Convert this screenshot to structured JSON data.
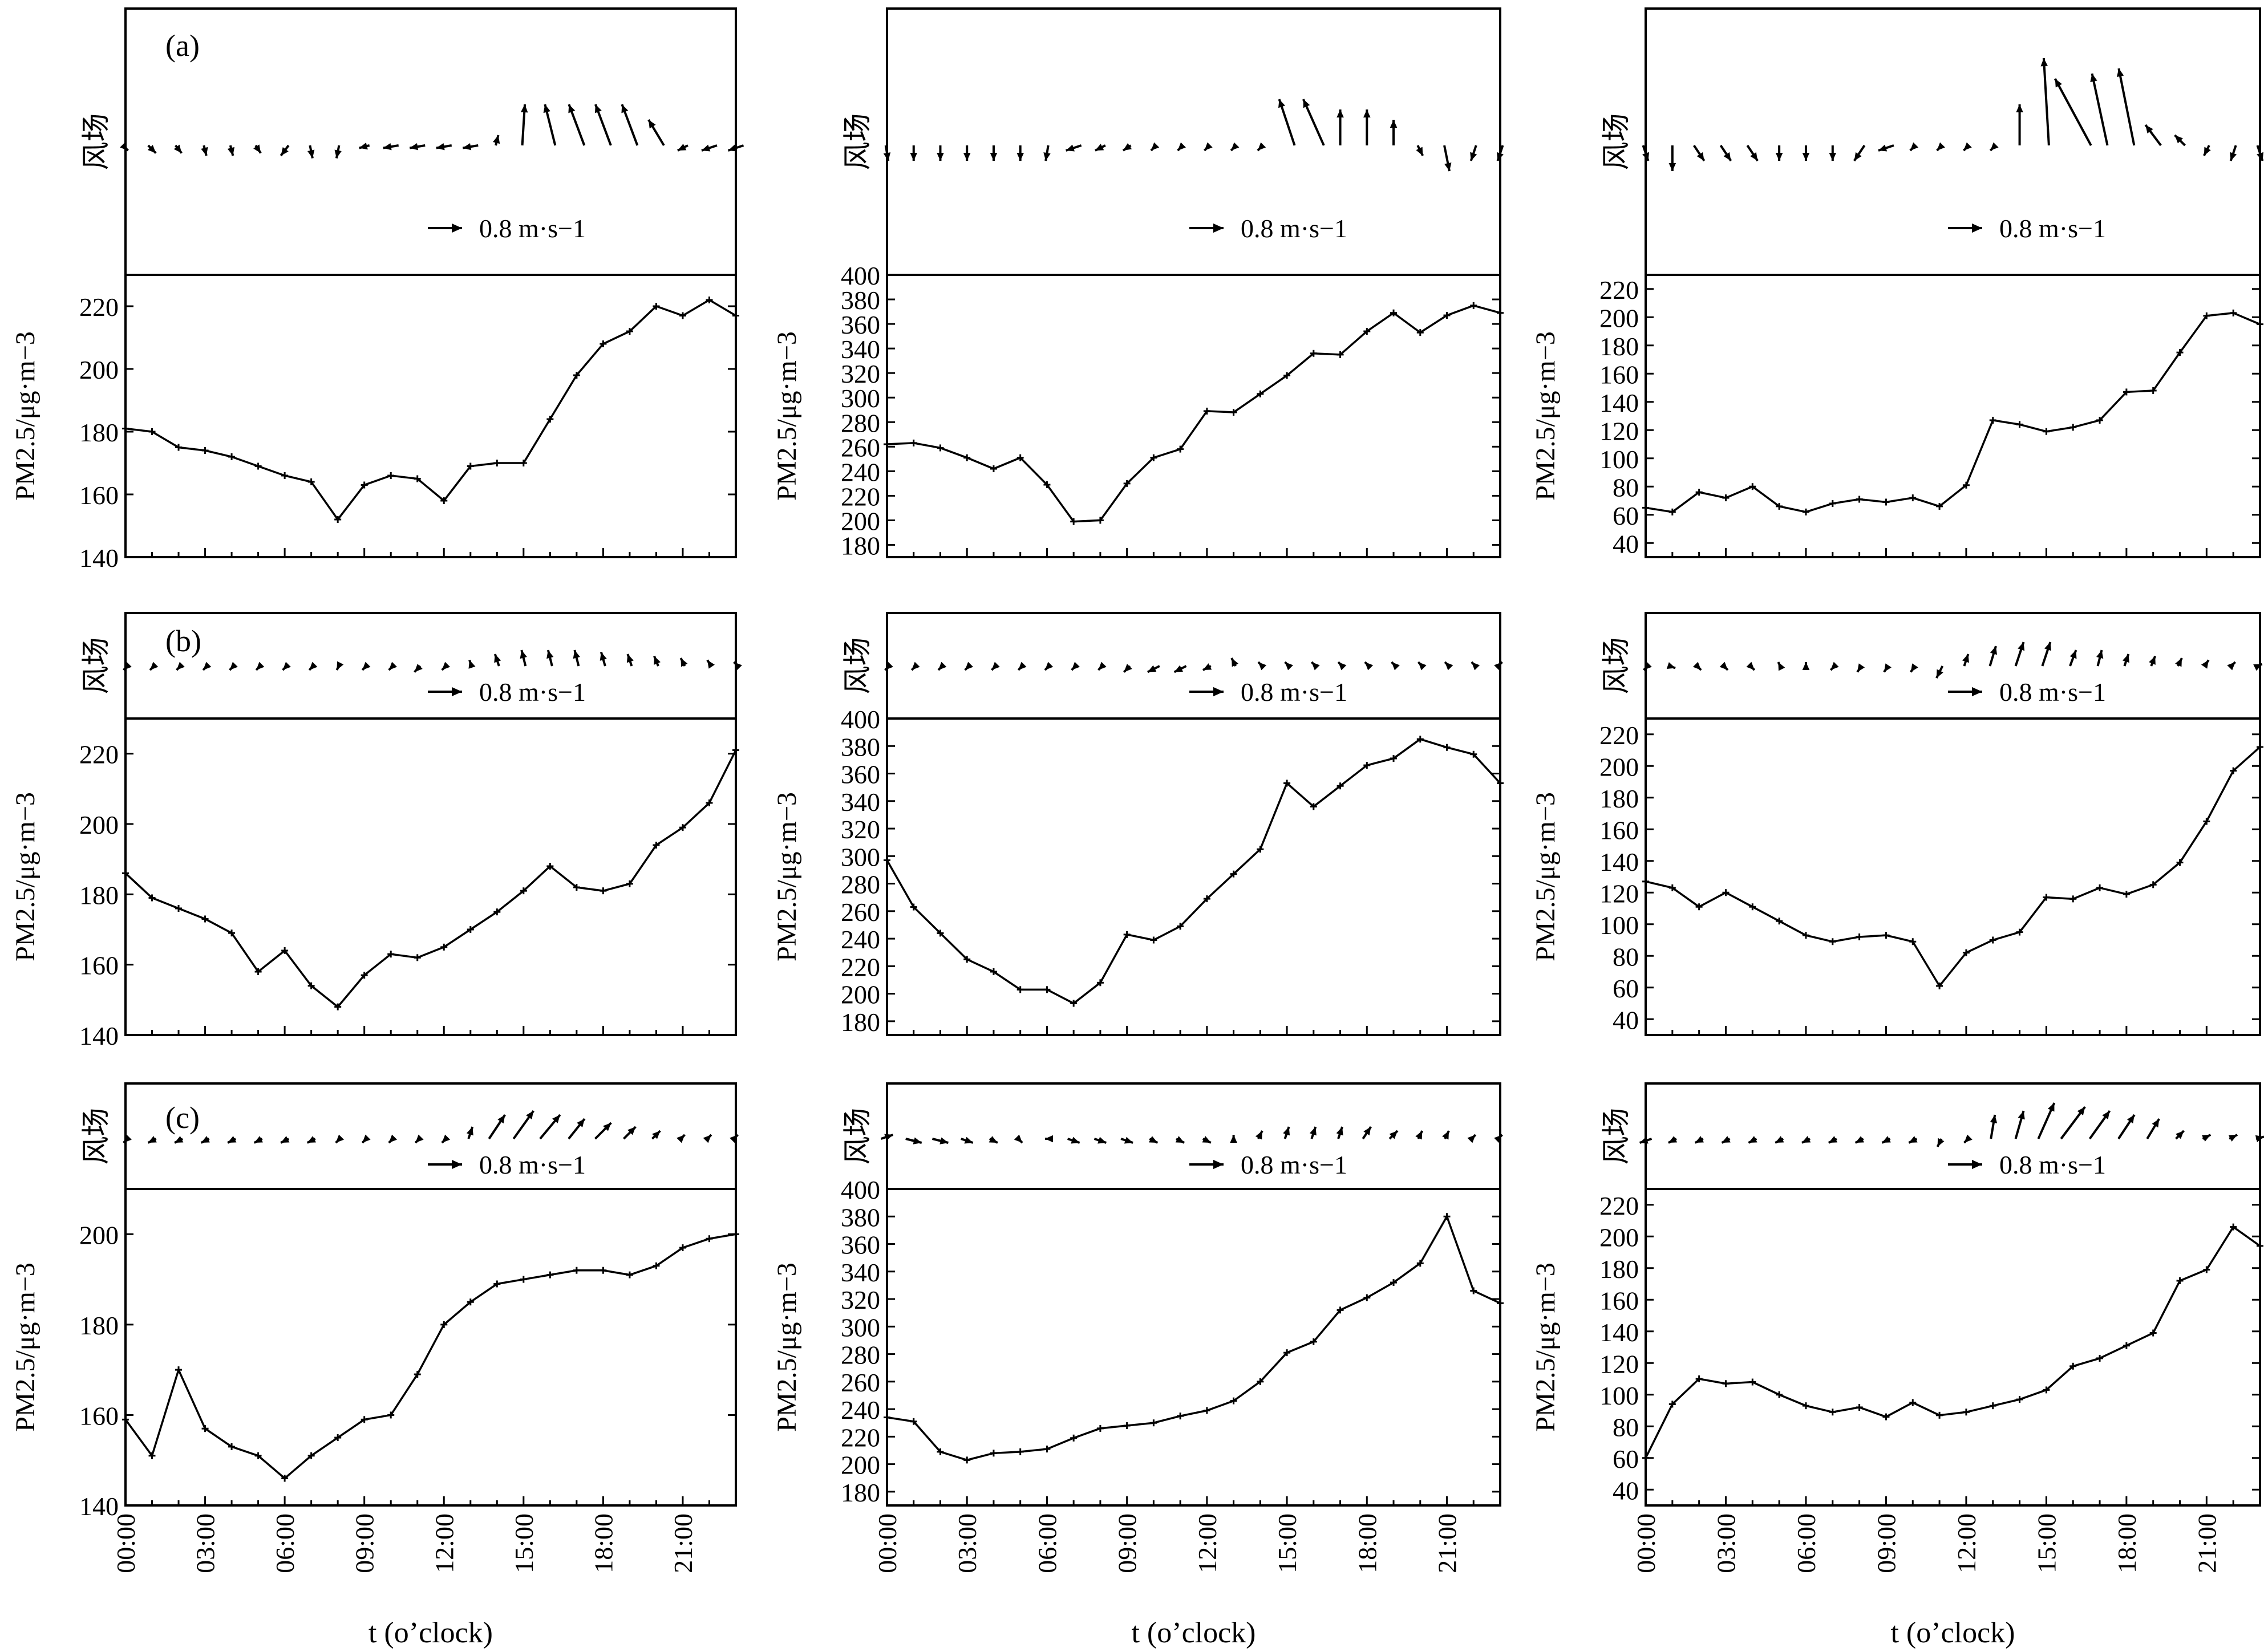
{
  "figure": {
    "wind_axis_label": "风场",
    "pm_axis_label": "PM2.5/μg·m−3",
    "x_axis_label": "t (o’clock)",
    "x_ticks": [
      "00:00",
      "03:00",
      "06:00",
      "09:00",
      "12:00",
      "15:00",
      "18:00",
      "21:00"
    ],
    "reference_arrow_label": "0.8 m·s−1",
    "reference_arrow_speed": 0.8,
    "row_labels": [
      "(a)",
      "(b)",
      "(c)"
    ]
  },
  "chart_data": [
    {
      "type": "line",
      "row": "(a)",
      "col": 1,
      "x_unit": "hour",
      "ylim": [
        140,
        230
      ],
      "yticks": [
        140,
        160,
        180,
        200,
        220
      ],
      "values": [
        181,
        180,
        175,
        174,
        172,
        169,
        166,
        164,
        152,
        163,
        166,
        165,
        158,
        169,
        170,
        170,
        184,
        198,
        208,
        212,
        220,
        217,
        222,
        217
      ]
    },
    {
      "type": "line",
      "row": "(a)",
      "col": 2,
      "x_unit": "hour",
      "ylim": [
        170,
        400
      ],
      "yticks": [
        180,
        200,
        220,
        240,
        260,
        280,
        300,
        320,
        340,
        360,
        380,
        400
      ],
      "values": [
        262,
        263,
        259,
        251,
        242,
        251,
        229,
        199,
        200,
        230,
        251,
        258,
        289,
        288,
        303,
        318,
        336,
        335,
        354,
        369,
        353,
        367,
        375,
        369
      ]
    },
    {
      "type": "line",
      "row": "(a)",
      "col": 3,
      "x_unit": "hour",
      "ylim": [
        30,
        230
      ],
      "yticks": [
        40,
        60,
        80,
        100,
        120,
        140,
        160,
        180,
        200,
        220
      ],
      "values": [
        65,
        62,
        76,
        72,
        80,
        66,
        62,
        68,
        71,
        69,
        72,
        66,
        81,
        127,
        124,
        119,
        122,
        127,
        147,
        148,
        175,
        201,
        203,
        195
      ]
    },
    {
      "type": "line",
      "row": "(b)",
      "col": 1,
      "x_unit": "hour",
      "ylim": [
        140,
        230
      ],
      "yticks": [
        140,
        160,
        180,
        200,
        220
      ],
      "values": [
        186,
        179,
        176,
        173,
        169,
        158,
        164,
        154,
        148,
        157,
        163,
        162,
        165,
        170,
        175,
        181,
        188,
        182,
        181,
        183,
        194,
        199,
        206,
        221
      ]
    },
    {
      "type": "line",
      "row": "(b)",
      "col": 2,
      "x_unit": "hour",
      "ylim": [
        170,
        400
      ],
      "yticks": [
        180,
        200,
        220,
        240,
        260,
        280,
        300,
        320,
        340,
        360,
        380,
        400
      ],
      "values": [
        297,
        263,
        244,
        225,
        216,
        203,
        203,
        193,
        208,
        243,
        239,
        249,
        269,
        287,
        305,
        353,
        336,
        351,
        366,
        371,
        385,
        379,
        374,
        353
      ]
    },
    {
      "type": "line",
      "row": "(b)",
      "col": 3,
      "x_unit": "hour",
      "ylim": [
        30,
        230
      ],
      "yticks": [
        40,
        60,
        80,
        100,
        120,
        140,
        160,
        180,
        200,
        220
      ],
      "values": [
        127,
        123,
        111,
        120,
        111,
        102,
        93,
        89,
        92,
        93,
        89,
        61,
        82,
        90,
        95,
        117,
        116,
        123,
        119,
        125,
        139,
        165,
        197,
        212
      ]
    },
    {
      "type": "line",
      "row": "(c)",
      "col": 1,
      "x_unit": "hour",
      "ylim": [
        140,
        210
      ],
      "yticks": [
        140,
        160,
        180,
        200
      ],
      "values": [
        159,
        151,
        170,
        157,
        153,
        151,
        146,
        151,
        155,
        159,
        160,
        169,
        180,
        185,
        189,
        190,
        191,
        192,
        192,
        191,
        193,
        197,
        199,
        200
      ]
    },
    {
      "type": "line",
      "row": "(c)",
      "col": 2,
      "x_unit": "hour",
      "ylim": [
        170,
        400
      ],
      "yticks": [
        180,
        200,
        220,
        240,
        260,
        280,
        300,
        320,
        340,
        360,
        380,
        400
      ],
      "values": [
        234,
        231,
        209,
        203,
        208,
        209,
        211,
        219,
        226,
        228,
        230,
        235,
        239,
        246,
        260,
        281,
        289,
        312,
        321,
        332,
        346,
        380,
        326,
        317
      ]
    },
    {
      "type": "line",
      "row": "(c)",
      "col": 3,
      "x_unit": "hour",
      "ylim": [
        30,
        230
      ],
      "yticks": [
        40,
        60,
        80,
        100,
        120,
        140,
        160,
        180,
        200,
        220
      ],
      "values": [
        60,
        94,
        110,
        107,
        108,
        100,
        93,
        89,
        92,
        86,
        95,
        87,
        89,
        93,
        97,
        103,
        118,
        123,
        131,
        139,
        172,
        179,
        206,
        194
      ]
    }
  ],
  "wind_data": [
    {
      "row": "(a)",
      "col": 1,
      "u": [
        0.1,
        0.15,
        0.12,
        0.05,
        0.05,
        0.1,
        -0.15,
        0.05,
        -0.05,
        -0.2,
        -0.3,
        -0.3,
        -0.3,
        -0.3,
        0.05,
        0.05,
        -0.2,
        -0.3,
        -0.3,
        -0.3,
        -0.3,
        -0.2,
        -0.3,
        -0.3
      ],
      "v": [
        -0.1,
        -0.15,
        -0.15,
        -0.2,
        -0.2,
        -0.15,
        -0.2,
        -0.25,
        -0.25,
        -0.05,
        -0.05,
        -0.05,
        -0.05,
        -0.05,
        0.2,
        0.8,
        0.8,
        0.8,
        0.8,
        0.8,
        0.5,
        -0.1,
        -0.1,
        -0.1
      ]
    },
    {
      "row": "(a)",
      "col": 2,
      "u": [
        0.05,
        0.0,
        0.0,
        0.0,
        0.0,
        0.0,
        -0.05,
        -0.3,
        -0.2,
        -0.15,
        -0.1,
        -0.1,
        -0.1,
        -0.1,
        -0.1,
        -0.3,
        -0.4,
        0.0,
        0.0,
        0.0,
        0.1,
        0.1,
        -0.1,
        -0.1
      ],
      "v": [
        -0.3,
        -0.3,
        -0.3,
        -0.3,
        -0.3,
        -0.3,
        -0.3,
        -0.1,
        -0.1,
        -0.1,
        -0.1,
        -0.1,
        -0.1,
        -0.1,
        -0.1,
        0.9,
        0.9,
        0.7,
        0.7,
        0.5,
        -0.2,
        -0.5,
        -0.3,
        -0.3
      ]
    },
    {
      "row": "(a)",
      "col": 3,
      "u": [
        0.1,
        0.0,
        0.2,
        0.2,
        0.2,
        0.0,
        0.0,
        0.0,
        -0.2,
        -0.3,
        -0.1,
        -0.1,
        -0.1,
        -0.1,
        0.0,
        -0.1,
        -0.7,
        -0.3,
        -0.3,
        -0.3,
        -0.2,
        -0.1,
        -0.1,
        0.1
      ],
      "v": [
        -0.3,
        -0.5,
        -0.3,
        -0.3,
        -0.3,
        -0.3,
        -0.3,
        -0.3,
        -0.3,
        -0.1,
        -0.1,
        -0.1,
        -0.1,
        -0.1,
        0.8,
        1.7,
        1.3,
        1.4,
        1.5,
        0.4,
        0.2,
        -0.2,
        -0.3,
        -0.3
      ]
    },
    {
      "row": "(b)",
      "col": 1,
      "u": [
        -0.1,
        -0.1,
        -0.1,
        -0.1,
        -0.1,
        -0.1,
        -0.1,
        -0.1,
        -0.05,
        -0.1,
        -0.1,
        -0.15,
        -0.1,
        -0.05,
        -0.1,
        -0.1,
        -0.1,
        -0.1,
        -0.1,
        -0.1,
        -0.1,
        -0.1,
        -0.1,
        -0.1
      ],
      "v": [
        -0.1,
        -0.1,
        -0.1,
        -0.1,
        -0.1,
        -0.1,
        -0.1,
        -0.1,
        -0.1,
        -0.1,
        -0.1,
        -0.15,
        -0.1,
        0.15,
        0.3,
        0.4,
        0.4,
        0.4,
        0.35,
        0.3,
        0.25,
        0.2,
        0.15,
        0.1
      ]
    },
    {
      "row": "(b)",
      "col": 2,
      "u": [
        -0.1,
        -0.1,
        -0.1,
        -0.1,
        -0.1,
        -0.1,
        -0.1,
        -0.1,
        -0.1,
        -0.15,
        -0.3,
        -0.3,
        -0.2,
        -0.1,
        -0.1,
        -0.1,
        -0.1,
        -0.1,
        -0.1,
        -0.1,
        -0.1,
        -0.1,
        -0.1,
        0.1
      ],
      "v": [
        -0.1,
        -0.1,
        -0.1,
        -0.1,
        -0.1,
        -0.1,
        -0.1,
        -0.1,
        -0.1,
        -0.15,
        -0.15,
        -0.15,
        -0.1,
        0.2,
        0.1,
        0.1,
        0.1,
        0.1,
        0.1,
        0.1,
        0.1,
        0.1,
        0.1,
        0.1
      ]
    },
    {
      "row": "(b)",
      "col": 3,
      "u": [
        -0.1,
        0.15,
        0.1,
        0.1,
        0.1,
        -0.05,
        0.0,
        -0.1,
        -0.1,
        -0.1,
        -0.1,
        -0.15,
        0.1,
        0.15,
        0.2,
        0.2,
        0.15,
        0.1,
        0.1,
        0.1,
        0.1,
        0.1,
        0.1,
        0.1
      ],
      "v": [
        -0.1,
        -0.05,
        -0.1,
        -0.1,
        -0.1,
        0.1,
        0.1,
        -0.1,
        -0.15,
        -0.15,
        -0.15,
        -0.3,
        0.3,
        0.5,
        0.6,
        0.6,
        0.4,
        0.4,
        0.3,
        0.25,
        0.2,
        0.15,
        0.1,
        0.05
      ]
    },
    {
      "row": "(c)",
      "col": 1,
      "u": [
        -0.1,
        -0.2,
        -0.2,
        -0.2,
        -0.2,
        -0.2,
        -0.2,
        -0.2,
        -0.1,
        -0.1,
        -0.1,
        -0.1,
        -0.1,
        0.1,
        0.4,
        0.5,
        0.5,
        0.4,
        0.4,
        0.3,
        0.2,
        0.1,
        0.1,
        0.1
      ],
      "v": [
        -0.1,
        -0.1,
        -0.1,
        -0.1,
        -0.1,
        -0.1,
        -0.1,
        -0.1,
        -0.1,
        -0.1,
        -0.1,
        -0.1,
        -0.1,
        0.3,
        0.6,
        0.7,
        0.6,
        0.5,
        0.4,
        0.3,
        0.2,
        0.1,
        0.1,
        0.1
      ]
    },
    {
      "row": "(c)",
      "col": 2,
      "u": [
        0.3,
        0.4,
        0.4,
        0.3,
        0.2,
        0.1,
        -0.1,
        0.3,
        0.3,
        0.3,
        0.2,
        0.2,
        0.2,
        0.0,
        0.1,
        0.1,
        0.1,
        0.1,
        0.2,
        0.2,
        0.1,
        0.1,
        0.1,
        0.1
      ],
      "v": [
        0.1,
        -0.1,
        -0.1,
        -0.1,
        -0.1,
        -0.1,
        0.0,
        -0.1,
        -0.1,
        -0.1,
        -0.1,
        -0.1,
        -0.1,
        0.1,
        0.2,
        0.3,
        0.3,
        0.3,
        0.3,
        0.2,
        0.2,
        0.2,
        0.1,
        0.1
      ]
    },
    {
      "row": "(c)",
      "col": 3,
      "u": [
        -0.3,
        -0.2,
        -0.2,
        -0.2,
        -0.2,
        -0.2,
        -0.2,
        -0.2,
        -0.2,
        -0.2,
        -0.2,
        -0.1,
        -0.1,
        0.1,
        0.2,
        0.4,
        0.6,
        0.5,
        0.4,
        0.3,
        0.2,
        0.2,
        0.2,
        0.2
      ],
      "v": [
        -0.1,
        -0.1,
        -0.1,
        -0.1,
        -0.1,
        -0.1,
        -0.1,
        -0.1,
        -0.1,
        -0.1,
        -0.1,
        -0.2,
        -0.1,
        0.6,
        0.7,
        0.9,
        0.8,
        0.7,
        0.6,
        0.5,
        0.2,
        0.1,
        0.1,
        0.05
      ]
    }
  ]
}
